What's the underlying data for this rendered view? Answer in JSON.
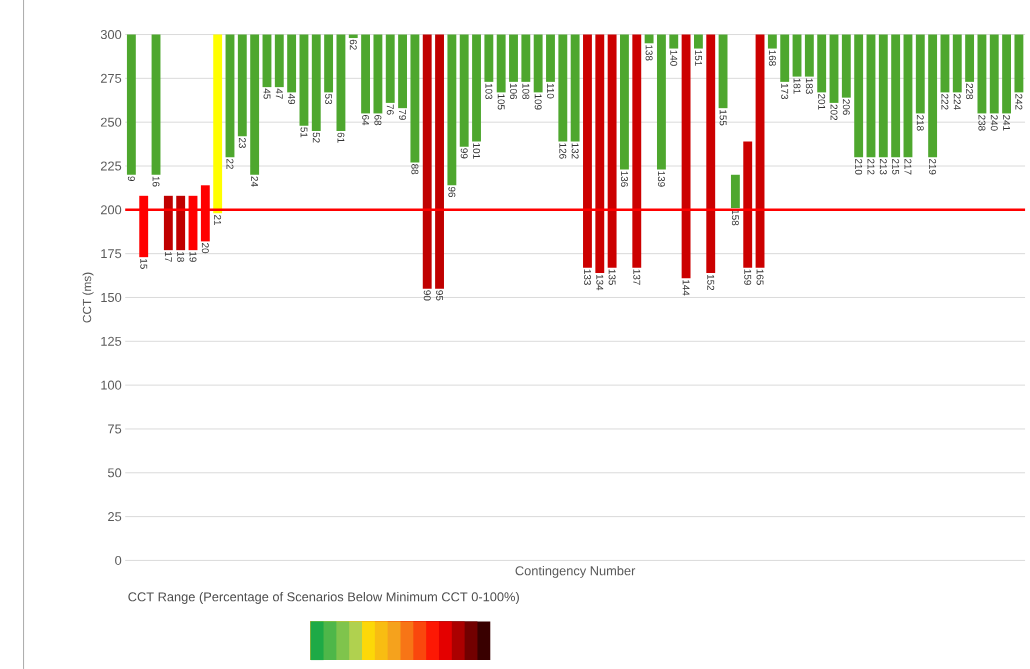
{
  "chart_data": {
    "type": "bar",
    "ylabel": "CCT (ms)",
    "xlabel": "Contingency Number",
    "legend_title": "CCT Range (Percentage of Scenarios Below Minimum CCT 0-100%)",
    "categories": [
      "9",
      "15",
      "16",
      "17",
      "18",
      "19",
      "20",
      "21",
      "22",
      "23",
      "24",
      "45",
      "47",
      "49",
      "51",
      "52",
      "53",
      "61",
      "62",
      "64",
      "68",
      "76",
      "79",
      "88",
      "90",
      "95",
      "96",
      "99",
      "101",
      "103",
      "105",
      "106",
      "108",
      "109",
      "110",
      "126",
      "132",
      "133",
      "134",
      "135",
      "136",
      "137",
      "138",
      "139",
      "140",
      "144",
      "151",
      "152",
      "155",
      "158",
      "159",
      "165",
      "168",
      "173",
      "181",
      "183",
      "201",
      "202",
      "206",
      "210",
      "212",
      "213",
      "215",
      "217",
      "218",
      "219",
      "222",
      "224",
      "228",
      "238",
      "240",
      "241",
      "242"
    ],
    "base": [
      220,
      173,
      220,
      177,
      177,
      177,
      182,
      198,
      230,
      242,
      220,
      270,
      270,
      267,
      248,
      245,
      267,
      245,
      298,
      255,
      255,
      261,
      258,
      227,
      155,
      155,
      214,
      236,
      239,
      273,
      267,
      273,
      273,
      267,
      273,
      239,
      239,
      167,
      164,
      167,
      223,
      167,
      295,
      223,
      292,
      161,
      292,
      164,
      258,
      201,
      167,
      167,
      292,
      273,
      276,
      276,
      267,
      261,
      264,
      230,
      230,
      230,
      230,
      230,
      255,
      230,
      267,
      267,
      273,
      255,
      255,
      255,
      267
    ],
    "values": [
      80,
      35,
      80,
      31,
      31,
      31,
      32,
      102,
      70,
      58,
      80,
      30,
      30,
      33,
      52,
      55,
      33,
      55,
      2,
      45,
      45,
      39,
      42,
      73,
      145,
      145,
      86,
      64,
      61,
      27,
      33,
      27,
      27,
      33,
      27,
      61,
      61,
      133,
      136,
      133,
      77,
      133,
      5,
      77,
      8,
      139,
      8,
      136,
      42,
      19,
      72,
      133,
      8,
      27,
      24,
      24,
      33,
      39,
      36,
      70,
      70,
      70,
      70,
      70,
      45,
      70,
      33,
      33,
      27,
      45,
      45,
      45,
      33
    ],
    "colors": [
      "#4ea72e",
      "#ff0000",
      "#4ea72e",
      "#c00000",
      "#c00000",
      "#ff0000",
      "#ff0000",
      "#ffff00",
      "#4ea72e",
      "#4ea72e",
      "#4ea72e",
      "#4ea72e",
      "#4ea72e",
      "#4ea72e",
      "#4ea72e",
      "#4ea72e",
      "#4ea72e",
      "#4ea72e",
      "#4ea72e",
      "#4ea72e",
      "#4ea72e",
      "#4ea72e",
      "#4ea72e",
      "#4ea72e",
      "#c00000",
      "#c00000",
      "#4ea72e",
      "#4ea72e",
      "#4ea72e",
      "#4ea72e",
      "#4ea72e",
      "#4ea72e",
      "#4ea72e",
      "#4ea72e",
      "#4ea72e",
      "#4ea72e",
      "#4ea72e",
      "#cc0000",
      "#cc0000",
      "#cc0000",
      "#4ea72e",
      "#cc0000",
      "#4ea72e",
      "#4ea72e",
      "#4ea72e",
      "#cc0000",
      "#4ea72e",
      "#cc0000",
      "#4ea72e",
      "#4ea72e",
      "#cc0000",
      "#cc0000",
      "#4ea72e",
      "#4ea72e",
      "#4ea72e",
      "#4ea72e",
      "#4ea72e",
      "#4ea72e",
      "#4ea72e",
      "#4ea72e",
      "#4ea72e",
      "#4ea72e",
      "#4ea72e",
      "#4ea72e",
      "#4ea72e",
      "#4ea72e",
      "#4ea72e",
      "#4ea72e",
      "#4ea72e",
      "#4ea72e",
      "#4ea72e",
      "#4ea72e",
      "#4ea72e"
    ],
    "ylim": [
      0,
      300
    ],
    "yticks": [
      0,
      25,
      50,
      75,
      100,
      125,
      150,
      175,
      200,
      225,
      250,
      275,
      300
    ],
    "grid": "y",
    "ref_lines": [
      {
        "axis": "y",
        "value": 200,
        "color": "#ff0000"
      }
    ]
  }
}
